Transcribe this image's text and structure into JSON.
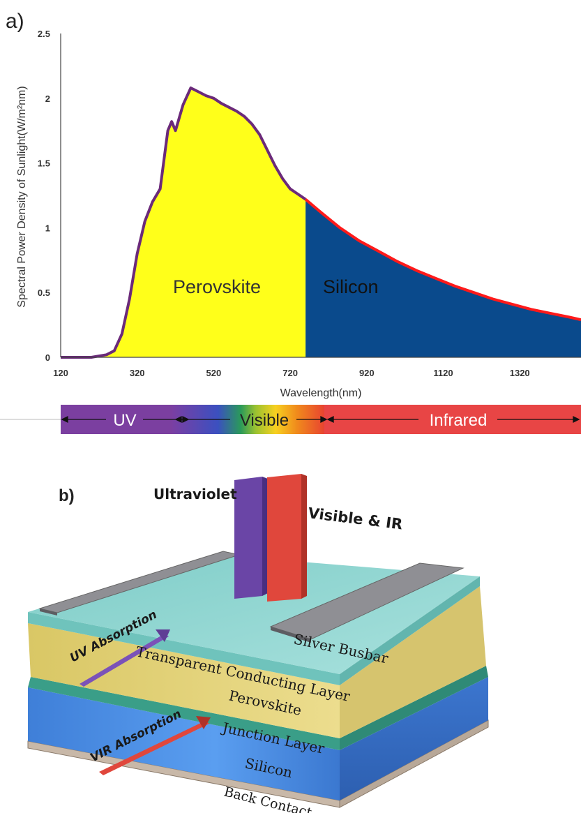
{
  "panel_a": {
    "label": "a)"
  },
  "panel_b": {
    "label": "b)"
  },
  "chart_data": {
    "type": "area",
    "xlabel": "Wavelength(nm)",
    "ylabel": "Spectral Power Density of Sunlight(W/m²nm)",
    "xlim": [
      120,
      1480
    ],
    "ylim": [
      0,
      2.5
    ],
    "x_ticks": [
      120,
      320,
      520,
      720,
      920,
      1120,
      1320
    ],
    "y_ticks": [
      0,
      0.5,
      1,
      1.5,
      2,
      2.5
    ],
    "y_tick_labels": [
      "0",
      "0.5",
      "1",
      "1.5",
      "2",
      "2.5"
    ],
    "split_wavelength": 760,
    "regions": [
      {
        "name": "Perovskite",
        "range": [
          120,
          760
        ],
        "fill": "#ffff1a",
        "line": "#6b2a7a"
      },
      {
        "name": "Silicon",
        "range": [
          760,
          1480
        ],
        "fill": "#0a4a8c",
        "line": "#ff1a1a"
      }
    ],
    "series": [
      {
        "x": [
          120,
          200,
          240,
          260,
          280,
          300,
          320,
          340,
          360,
          380,
          400,
          410,
          420,
          440,
          460,
          480,
          500,
          520,
          540,
          560,
          580,
          600,
          620,
          640,
          660,
          680,
          700,
          720,
          740,
          760,
          800,
          850,
          900,
          950,
          1000,
          1050,
          1100,
          1150,
          1200,
          1250,
          1300,
          1350,
          1400,
          1450,
          1480
        ],
        "y": [
          0,
          0,
          0.02,
          0.05,
          0.18,
          0.45,
          0.8,
          1.05,
          1.2,
          1.3,
          1.75,
          1.82,
          1.75,
          1.95,
          2.08,
          2.05,
          2.02,
          2.0,
          1.96,
          1.93,
          1.9,
          1.86,
          1.8,
          1.72,
          1.6,
          1.48,
          1.38,
          1.3,
          1.26,
          1.22,
          1.12,
          1.0,
          0.9,
          0.82,
          0.74,
          0.67,
          0.61,
          0.55,
          0.5,
          0.45,
          0.41,
          0.37,
          0.34,
          0.31,
          0.29
        ]
      }
    ]
  },
  "spectrum_bar": {
    "bands": [
      {
        "name": "UV",
        "range": [
          120,
          400
        ],
        "color": "#7b3fa0"
      },
      {
        "name": "Visible",
        "range": [
          400,
          780
        ],
        "color": "#f2c40f"
      },
      {
        "name": "Infrared",
        "range": [
          780,
          1480
        ],
        "color": "#e94545"
      }
    ]
  },
  "diagram": {
    "beams": [
      {
        "label": "Ultraviolet",
        "color": "#6a45a6"
      },
      {
        "label": "Visible & IR",
        "color": "#e0473c"
      }
    ],
    "layers": [
      {
        "label": "Transparent Conducting Layer",
        "color": "#8fd3cf"
      },
      {
        "label": "Perovskite",
        "color": "#e4d37a"
      },
      {
        "label": "Junction Layer",
        "color": "#3a9e88"
      },
      {
        "label": "Silicon",
        "color": "#4a8fe0"
      },
      {
        "label": "Back Contact",
        "color": "#c8b8a8"
      }
    ],
    "busbar_label": "Silver Busbar",
    "absorption": [
      {
        "label": "UV Absorption",
        "color": "#7b52b8"
      },
      {
        "label": "VIR Absorption",
        "color": "#e0473c"
      }
    ]
  }
}
